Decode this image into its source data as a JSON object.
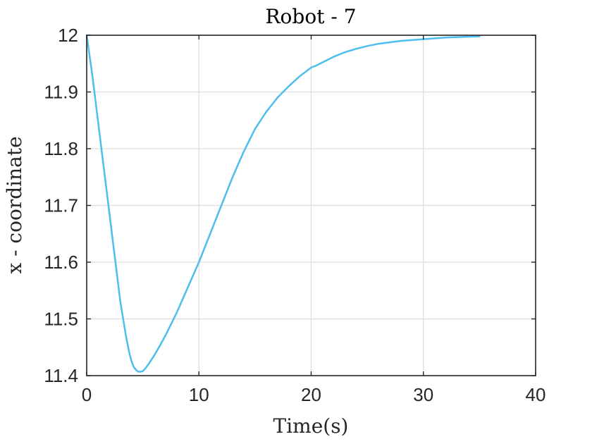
{
  "chart_data": {
    "type": "line",
    "title": "Robot - 7",
    "xlabel": "Time(s)",
    "ylabel": "x - coordinate",
    "xlim": [
      0,
      40
    ],
    "ylim": [
      11.4,
      12
    ],
    "xticks": [
      0,
      10,
      20,
      30,
      40
    ],
    "yticks": [
      11.4,
      11.5,
      11.6,
      11.7,
      11.8,
      11.9,
      12
    ],
    "xtick_labels": [
      "0",
      "10",
      "20",
      "30",
      "40"
    ],
    "ytick_labels": [
      "11.4",
      "11.5",
      "11.6",
      "11.7",
      "11.8",
      "11.9",
      "12"
    ],
    "grid": true,
    "colors": {
      "line": "#4DBEEE",
      "grid": "#DDDDDD",
      "axis": "#262626"
    },
    "series": [
      {
        "x": [
          0,
          0.5,
          1,
          1.5,
          2,
          2.5,
          3,
          3.5,
          3.8,
          4.0,
          4.2,
          4.4,
          4.6,
          4.8,
          5.0,
          5.2,
          5.5,
          6,
          6.5,
          7,
          7.5,
          8,
          9,
          10,
          11,
          12,
          13,
          14,
          15,
          16,
          17,
          18,
          19,
          20,
          20.5,
          21,
          22,
          23,
          24,
          25,
          26,
          28,
          30,
          32,
          35
        ],
        "y": [
          12.0,
          11.93,
          11.85,
          11.77,
          11.69,
          11.61,
          11.53,
          11.47,
          11.44,
          11.425,
          11.415,
          11.41,
          11.407,
          11.407,
          11.408,
          11.412,
          11.42,
          11.435,
          11.452,
          11.47,
          11.49,
          11.51,
          11.555,
          11.6,
          11.65,
          11.7,
          11.75,
          11.795,
          11.835,
          11.865,
          11.89,
          11.91,
          11.928,
          11.943,
          11.947,
          11.952,
          11.962,
          11.97,
          11.976,
          11.981,
          11.985,
          11.99,
          11.993,
          11.996,
          11.998
        ]
      }
    ]
  }
}
